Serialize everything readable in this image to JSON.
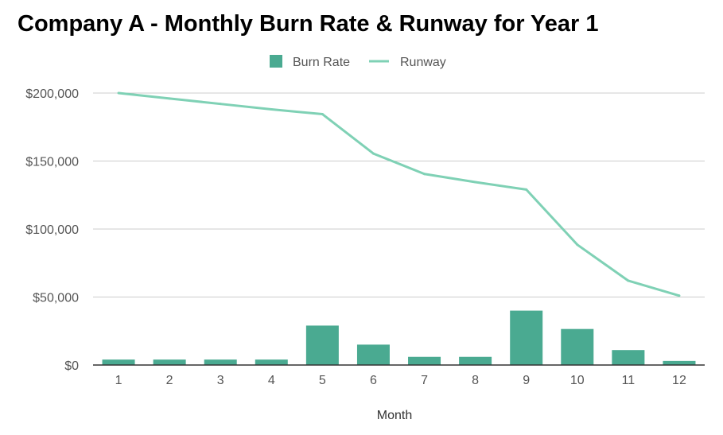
{
  "chart_data": {
    "type": "bar",
    "title": "Company A - Monthly Burn Rate & Runway for Year 1",
    "xlabel": "Month",
    "ylabel": "",
    "categories": [
      "1",
      "2",
      "3",
      "4",
      "5",
      "6",
      "7",
      "8",
      "9",
      "10",
      "11",
      "12"
    ],
    "ylim": [
      0,
      200000
    ],
    "yticks": [
      {
        "value": 0,
        "label": "$0"
      },
      {
        "value": 50000,
        "label": "$50,000"
      },
      {
        "value": 100000,
        "label": "$100,000"
      },
      {
        "value": 150000,
        "label": "$150,000"
      },
      {
        "value": 200000,
        "label": "$200,000"
      }
    ],
    "grid": true,
    "legend_position": "top",
    "series": [
      {
        "name": "Burn Rate",
        "type": "bar",
        "color": "#4aaa91",
        "values": [
          4000,
          4000,
          4000,
          4000,
          29000,
          15000,
          6000,
          6000,
          40000,
          26500,
          11000,
          3000
        ]
      },
      {
        "name": "Runway",
        "type": "line",
        "color": "#7fd1b5",
        "values": [
          200000,
          196000,
          192000,
          188000,
          184500,
          155500,
          140500,
          134500,
          129000,
          88500,
          62000,
          51000
        ]
      }
    ]
  }
}
